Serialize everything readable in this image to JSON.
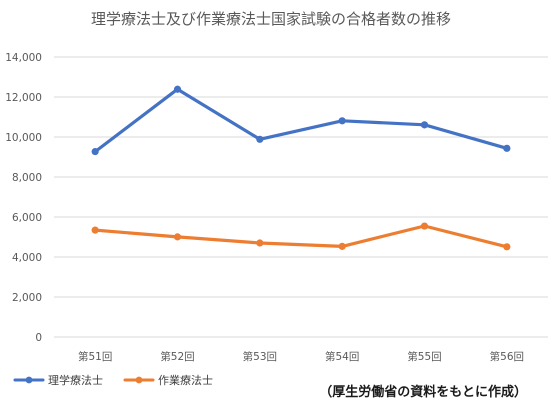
{
  "chart_data": {
    "type": "line",
    "title": "理学療法士及び作業療法士国家試験の合格者数の推移",
    "categories": [
      "第51回",
      "第52回",
      "第53回",
      "第54回",
      "第55回",
      "第56回"
    ],
    "series": [
      {
        "name": "理学療法士",
        "color": "#4472c4",
        "values": [
          9272,
          12388,
          9885,
          10809,
          10608,
          9434
        ]
      },
      {
        "name": "作業療法士",
        "color": "#ed7d31",
        "values": [
          5344,
          5007,
          4700,
          4531,
          5548,
          4510
        ]
      }
    ],
    "ylim": [
      0,
      14000
    ],
    "y_ticks": [
      0,
      2000,
      4000,
      6000,
      8000,
      10000,
      12000,
      14000
    ],
    "y_tick_labels": [
      "0",
      "2,000",
      "4,000",
      "6,000",
      "8,000",
      "10,000",
      "12,000",
      "14,000"
    ],
    "grid": true,
    "legend_position": "bottom-left",
    "source_note": "（厚生労働省の資料をもとに作成）"
  }
}
